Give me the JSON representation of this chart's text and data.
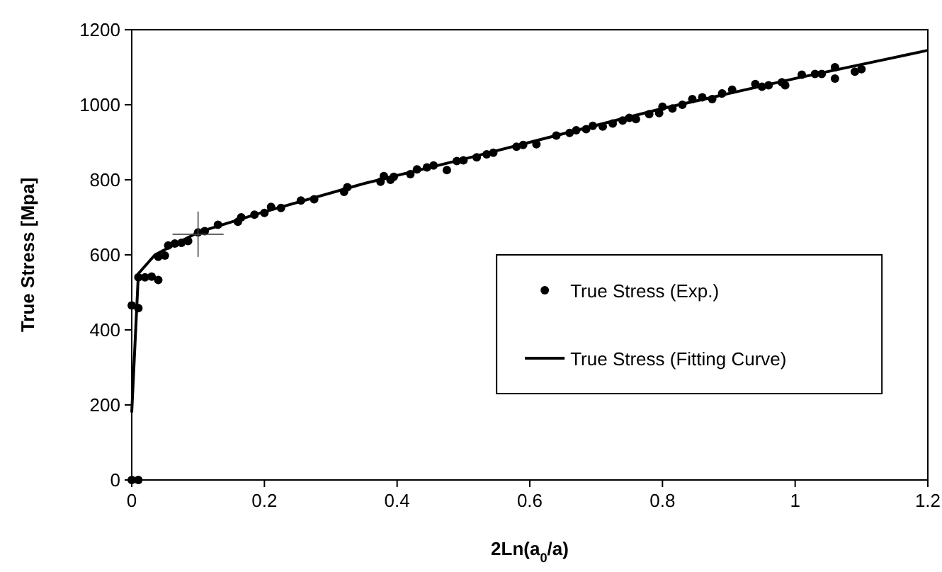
{
  "chart_data": {
    "type": "scatter",
    "xlabel": "2Ln(a$_{0}$/a)",
    "ylabel": "True Stress [Mpa]",
    "xlim": [
      0,
      1.2
    ],
    "ylim": [
      0,
      1200
    ],
    "xticks": [
      0,
      0.2,
      0.4,
      0.6,
      0.8,
      1,
      1.2
    ],
    "yticks": [
      0,
      200,
      400,
      600,
      800,
      1000,
      1200
    ],
    "legend": "right",
    "grid": false,
    "series": [
      {
        "name": "True Stress (Exp.)",
        "marker": "circle",
        "color": "#000000",
        "x": [
          0,
          0.01,
          0,
          0.01,
          0.01,
          0.02,
          0.03,
          0.04,
          0.04,
          0.05,
          0.055,
          0.065,
          0.075,
          0.085,
          0.1,
          0.11,
          0.13,
          0.16,
          0.165,
          0.185,
          0.2,
          0.21,
          0.225,
          0.255,
          0.275,
          0.32,
          0.325,
          0.375,
          0.38,
          0.39,
          0.395,
          0.42,
          0.43,
          0.445,
          0.455,
          0.475,
          0.49,
          0.5,
          0.52,
          0.535,
          0.545,
          0.58,
          0.59,
          0.61,
          0.64,
          0.66,
          0.67,
          0.685,
          0.695,
          0.71,
          0.725,
          0.74,
          0.75,
          0.76,
          0.78,
          0.795,
          0.8,
          0.815,
          0.83,
          0.845,
          0.86,
          0.875,
          0.89,
          0.905,
          0.94,
          0.95,
          0.96,
          0.98,
          0.985,
          1.01,
          1.03,
          1.04,
          1.06,
          1.06,
          1.09,
          1.1
        ],
        "values": [
          0,
          0,
          465,
          458,
          540,
          540,
          542,
          533,
          595,
          598,
          625,
          630,
          632,
          637,
          660,
          663,
          680,
          688,
          700,
          707,
          712,
          728,
          725,
          745,
          748,
          768,
          780,
          795,
          810,
          800,
          808,
          815,
          828,
          833,
          838,
          826,
          850,
          852,
          860,
          868,
          872,
          888,
          893,
          895,
          918,
          925,
          932,
          935,
          944,
          942,
          950,
          958,
          965,
          962,
          975,
          978,
          995,
          990,
          1000,
          1015,
          1020,
          1015,
          1030,
          1040,
          1055,
          1048,
          1052,
          1060,
          1052,
          1080,
          1082,
          1082,
          1070,
          1100,
          1088,
          1095
        ]
      },
      {
        "name": "True Stress (Fitting Curve)",
        "type": "line",
        "marker": "none",
        "line_style": "solid",
        "color": "#000000",
        "x": [
          0,
          0.01,
          0.035,
          0.1,
          0.2,
          0.35,
          0.5,
          0.8,
          1.0,
          1.2
        ],
        "values": [
          180,
          550,
          600,
          660,
          715,
          790,
          855,
          990,
          1070,
          1145
        ]
      }
    ]
  }
}
